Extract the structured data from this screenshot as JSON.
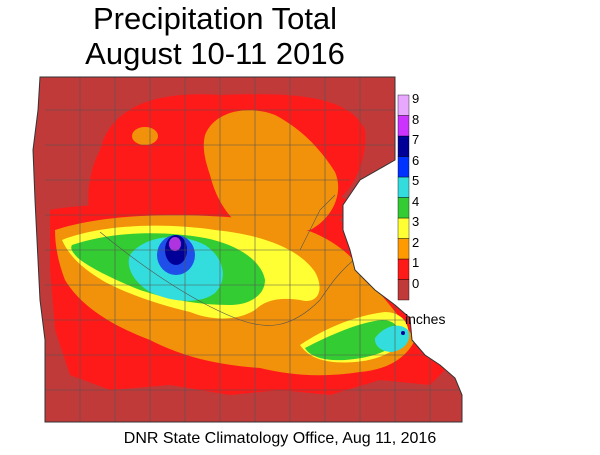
{
  "title_line1": "Precipitation Total",
  "title_line2": "August 10-11 2016",
  "credit": "DNR State Climatology Office, Aug 11, 2016",
  "legend": {
    "units": "inches",
    "bins": [
      {
        "label": "0",
        "color": "#c03a3a"
      },
      {
        "label": "1",
        "color": "#ff1a1a"
      },
      {
        "label": "2",
        "color": "#ff9a00"
      },
      {
        "label": "3",
        "color": "#ffff33"
      },
      {
        "label": "4",
        "color": "#33cc33"
      },
      {
        "label": "5",
        "color": "#33dddd"
      },
      {
        "label": "6",
        "color": "#0033ff"
      },
      {
        "label": "7",
        "color": "#000099"
      },
      {
        "label": "8",
        "color": "#cc33ff"
      },
      {
        "label": "9",
        "color": "#e8a8ff"
      }
    ]
  },
  "map_colors": {
    "base": "#c03a3a",
    "band1": "#ff1a1a",
    "band2": "#f2920a",
    "band3": "#ffff33",
    "band4": "#33cc33",
    "band5": "#33dddd",
    "band6": "#1f4fe8",
    "band7": "#000099",
    "band8": "#b033e0",
    "county_lines": "#555555"
  }
}
